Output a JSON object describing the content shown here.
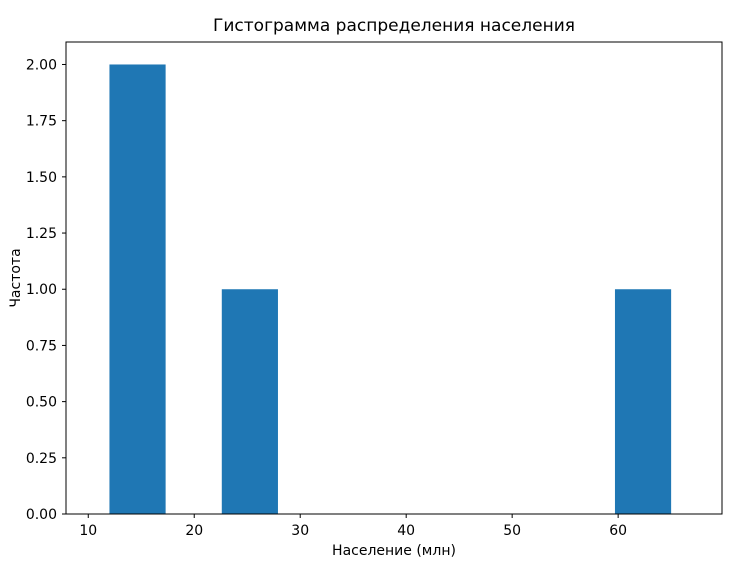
{
  "chart_data": {
    "type": "bar",
    "chart_kind": "histogram",
    "title": "Гистограмма распределения населения",
    "xlabel": "Население (млн)",
    "ylabel": "Частота",
    "bar_color": "#1f77b4",
    "bin_edges": [
      12.0,
      17.3,
      22.6,
      27.9,
      33.2,
      38.5,
      43.8,
      49.1,
      54.4,
      59.7,
      65.0
    ],
    "counts": [
      2,
      0,
      1,
      0,
      0,
      0,
      0,
      0,
      0,
      1
    ],
    "xlim": [
      7.9,
      69.8
    ],
    "ylim": [
      0,
      2.1
    ],
    "xticks": [
      10,
      20,
      30,
      40,
      50,
      60
    ],
    "xtick_labels": [
      "10",
      "20",
      "30",
      "40",
      "50",
      "60"
    ],
    "yticks": [
      0,
      0.25,
      0.5,
      0.75,
      1.0,
      1.25,
      1.5,
      1.75,
      2.0
    ],
    "ytick_labels": [
      "0.00",
      "0.25",
      "0.50",
      "0.75",
      "1.00",
      "1.25",
      "1.50",
      "1.75",
      "2.00"
    ],
    "grid": false,
    "legend_position": "none"
  }
}
